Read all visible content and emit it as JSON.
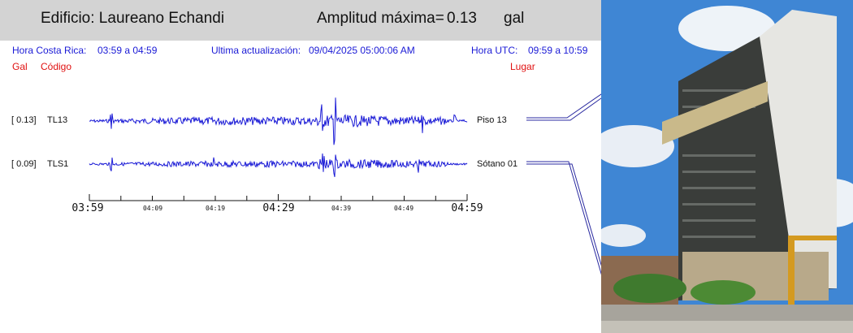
{
  "header": {
    "building_label": "Edificio: Laureano Echandi",
    "amplitude_label": "Amplitud máxima=",
    "amplitude_value": "0.13",
    "amplitude_unit": "gal"
  },
  "info": {
    "local_time_label": "Hora Costa Rica:",
    "local_time_range": "03:59 a 04:59",
    "update_label": "Ultima actualización:",
    "update_value": "09/04/2025 05:00:06 AM",
    "utc_label": "Hora UTC:",
    "utc_range": "09:59 a 10:59"
  },
  "columns": {
    "gal": "Gal",
    "code": "Código",
    "place": "Lugar"
  },
  "channels": [
    {
      "amplitude": "[  0.13]",
      "code": "TL13",
      "place": "Piso 13"
    },
    {
      "amplitude": "[  0.09]",
      "code": "TLS1",
      "place": "Sótano 01"
    }
  ],
  "time_axis": {
    "major_labels": [
      "03:59",
      "04:29",
      "04:59"
    ],
    "minor_labels": [
      "04:09",
      "04:19",
      "04:39",
      "04:49"
    ]
  },
  "colors": {
    "trace": "#1a1ad6",
    "info_text": "#1a1ad6",
    "column_header": "#e01010",
    "header_bg": "#d3d3d3",
    "sky": "#3f86d4"
  }
}
